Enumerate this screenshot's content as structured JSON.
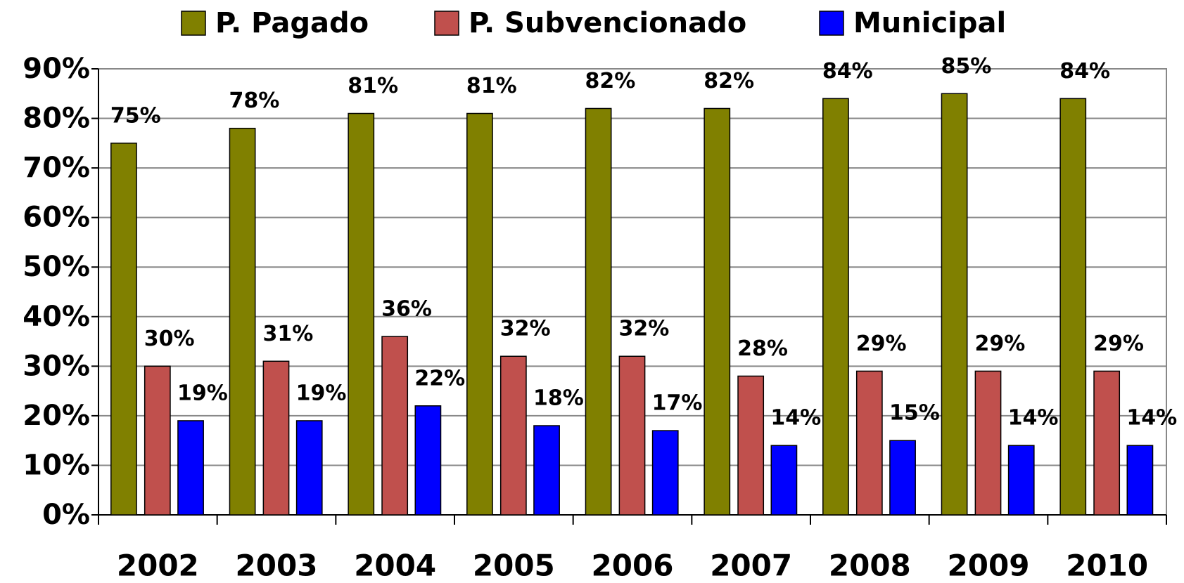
{
  "chart_data": {
    "type": "bar",
    "categories": [
      "2002",
      "2003",
      "2004",
      "2005",
      "2006",
      "2007",
      "2008",
      "2009",
      "2010"
    ],
    "series": [
      {
        "name": "P. Pagado",
        "color": "#808000",
        "values": [
          75,
          78,
          81,
          81,
          82,
          82,
          84,
          85,
          84
        ],
        "value_labels": [
          "75%",
          "78%",
          "81%",
          "81%",
          "82%",
          "82%",
          "84%",
          "85%",
          "84%"
        ]
      },
      {
        "name": "P. Subvencionado",
        "color": "#c0504d",
        "values": [
          30,
          31,
          36,
          32,
          32,
          28,
          29,
          29,
          29
        ],
        "value_labels": [
          "30%",
          "31%",
          "36%",
          "32%",
          "32%",
          "28%",
          "29%",
          "29%",
          "29%"
        ]
      },
      {
        "name": "Municipal",
        "color": "#0000ff",
        "values": [
          19,
          19,
          22,
          18,
          17,
          14,
          15,
          14,
          14
        ],
        "value_labels": [
          "19%",
          "19%",
          "22%",
          "18%",
          "17%",
          "14%",
          "15%",
          "14%",
          "14%"
        ]
      }
    ],
    "ylim": [
      0,
      90
    ],
    "yticks": [
      {
        "value": 0,
        "label": "0%"
      },
      {
        "value": 10,
        "label": "10%"
      },
      {
        "value": 20,
        "label": "20%"
      },
      {
        "value": 30,
        "label": "30%"
      },
      {
        "value": 40,
        "label": "40%"
      },
      {
        "value": 50,
        "label": "50%"
      },
      {
        "value": 60,
        "label": "60%"
      },
      {
        "value": 70,
        "label": "70%"
      },
      {
        "value": 80,
        "label": "80%"
      },
      {
        "value": 90,
        "label": "90%"
      }
    ],
    "grid": true,
    "legend": "top"
  }
}
